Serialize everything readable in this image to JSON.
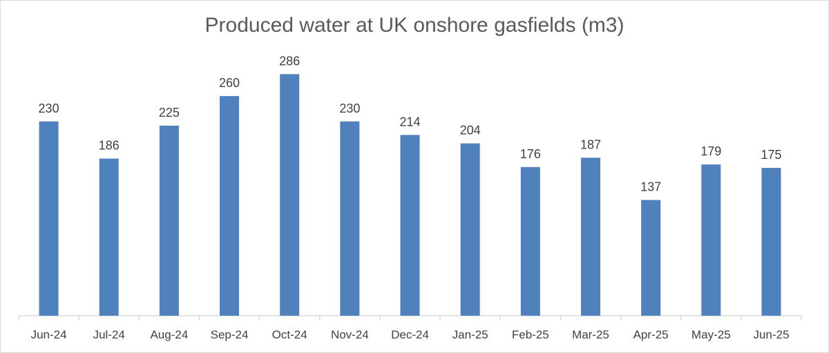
{
  "chart_data": {
    "type": "bar",
    "title": "Produced water at UK onshore gasfields (m3)",
    "categories": [
      "Jun-24",
      "Jul-24",
      "Aug-24",
      "Sep-24",
      "Oct-24",
      "Nov-24",
      "Dec-24",
      "Jan-25",
      "Feb-25",
      "Mar-25",
      "Apr-25",
      "May-25",
      "Jun-25"
    ],
    "values": [
      230,
      186,
      225,
      260,
      286,
      230,
      214,
      204,
      176,
      187,
      137,
      179,
      175
    ],
    "xlabel": "",
    "ylabel": "",
    "ylim": [
      0,
      300
    ],
    "grid": false,
    "legend": "none",
    "bar_color": "#4f81bd",
    "axis_color": "#d9d9d9"
  }
}
